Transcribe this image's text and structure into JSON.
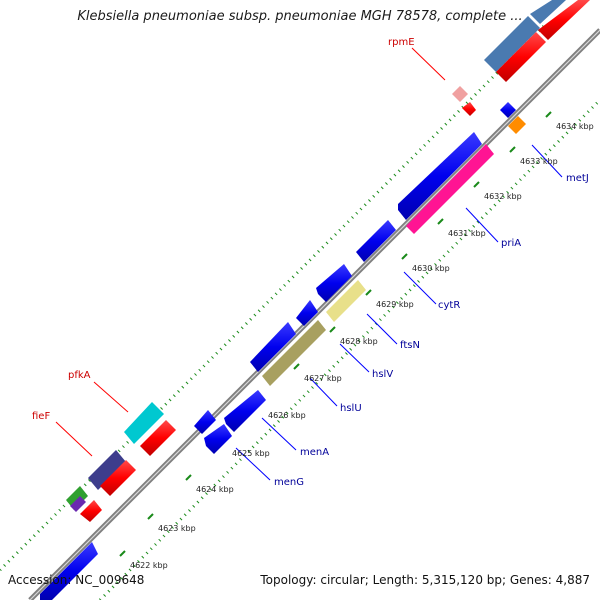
{
  "header": {
    "title": "Klebsiella pneumoniae subsp. pneumoniae MGH 78578, complete ..."
  },
  "footer": {
    "accession": "Accession: NC_009648",
    "summary": "Topology: circular; Length: 5,315,120 bp; Genes: 4,887"
  },
  "colors": {
    "backbone": "#808080",
    "dotted_track": "#1a8a1a",
    "forward_gene": "#0000ee",
    "reverse_gene": "#ff0000",
    "rna_gene": "#ff1493",
    "label_forward": "#000099",
    "label_reverse": "#cc0000",
    "callout_forward": "#0000ff",
    "callout_reverse": "#ff0000"
  },
  "ticks": [
    {
      "label": "4622 kbp"
    },
    {
      "label": "4623 kbp"
    },
    {
      "label": "4624 kbp"
    },
    {
      "label": "4625 kbp"
    },
    {
      "label": "4626 kbp"
    },
    {
      "label": "4627 kbp"
    },
    {
      "label": "4628 kbp"
    },
    {
      "label": "4629 kbp"
    },
    {
      "label": "4630 kbp"
    },
    {
      "label": "4631 kbp"
    },
    {
      "label": "4632 kbp"
    },
    {
      "label": "4633 kbp"
    },
    {
      "label": "4634 kbp"
    }
  ],
  "gene_labels": [
    {
      "name": "rpmE",
      "strand": "reverse"
    },
    {
      "name": "metJ",
      "strand": "forward"
    },
    {
      "name": "priA",
      "strand": "forward"
    },
    {
      "name": "cytR",
      "strand": "forward"
    },
    {
      "name": "ftsN",
      "strand": "forward"
    },
    {
      "name": "hslV",
      "strand": "forward"
    },
    {
      "name": "hslU",
      "strand": "forward"
    },
    {
      "name": "menA",
      "strand": "forward"
    },
    {
      "name": "menG",
      "strand": "forward"
    },
    {
      "name": "pfkA",
      "strand": "reverse"
    },
    {
      "name": "fieF",
      "strand": "reverse"
    }
  ]
}
